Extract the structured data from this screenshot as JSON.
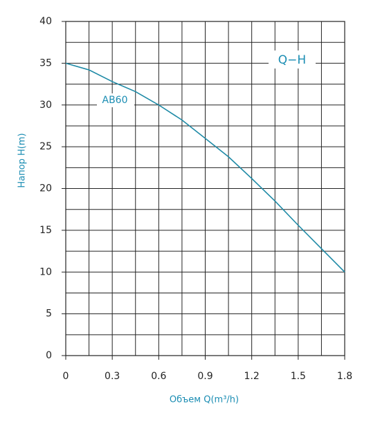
{
  "chart_data": {
    "type": "line",
    "x_label": "Объем Q(m³/h)",
    "y_label": "Напор H(m)",
    "x": [
      0,
      0.15,
      0.3,
      0.45,
      0.6,
      0.75,
      0.9,
      1.05,
      1.2,
      1.35,
      1.5,
      1.65,
      1.8
    ],
    "series": [
      {
        "name": "AB60",
        "color": "#1e8aa6",
        "values": [
          35,
          34.2,
          32.8,
          31.6,
          30,
          28.2,
          26,
          23.8,
          21.2,
          18.5,
          15.6,
          12.8,
          10
        ]
      }
    ],
    "annotations": [
      "Q−H"
    ],
    "xlim": [
      0,
      1.8
    ],
    "xticks": [
      0,
      0.3,
      0.6,
      0.9,
      1.2,
      1.5,
      1.8
    ],
    "ylim": [
      0,
      40
    ],
    "yticks": [
      0,
      5,
      10,
      15,
      20,
      25,
      30,
      35,
      40
    ],
    "grid": true
  }
}
